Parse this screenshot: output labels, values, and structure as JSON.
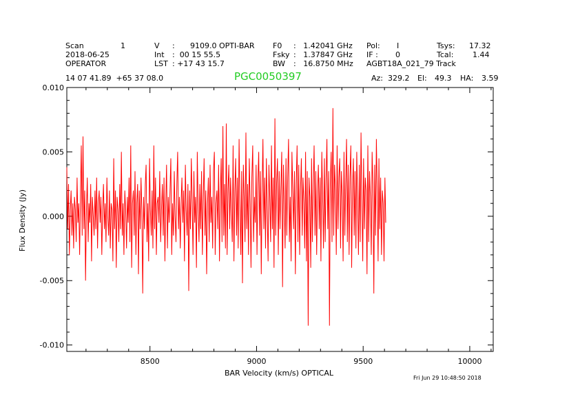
{
  "header": {
    "scan_label": "Scan",
    "scan_value": "1",
    "date": "2018-06-25",
    "observer": "OPERATOR",
    "v_label": "V",
    "v_sep": ":",
    "v_value": "9109.0 OPTI-BAR",
    "int_label": "Int",
    "int_value": ":  00 15 55.5",
    "lst_label": "LST",
    "lst_value": ": +17 43 15.7",
    "f0_label": "F0",
    "f0_value": ":   1.42041 GHz",
    "fsky_label": "Fsky",
    "fsky_value": ":   1.37847 GHz",
    "bw_label": "BW",
    "bw_value": ":   16.8750 MHz",
    "pol_label": "Pol:",
    "pol_value": "I",
    "if_label": "IF :",
    "if_value": "0",
    "project": "AGBT18A_021_79 Track",
    "tsys_label": "Tsys:",
    "tsys_value": "17.32",
    "tcal_label": "Tcal:",
    "tcal_value": "1.44",
    "coords": "14 07 41.89  +65 37 08.0",
    "object_name": "PGC0050397",
    "az_label": "Az:",
    "az_value": "329.2",
    "el_label": "El:",
    "el_value": "49.3",
    "ha_label": "HA:",
    "ha_value": "3.59"
  },
  "timestamp": "Fri Jun 29 10:48:50 2018",
  "colors": {
    "trace": "#ff0000",
    "title": "#22cc22",
    "axes": "#000000"
  },
  "chart_data": {
    "type": "line",
    "title": "PGC0050397",
    "xlabel": "BAR Velocity (km/s) OPTICAL",
    "ylabel": "Flux Density (Jy)",
    "xlim": [
      8110,
      10110
    ],
    "ylim": [
      -0.0105,
      0.01
    ],
    "x_ticks": [
      8500,
      9000,
      9500,
      10000
    ],
    "x_tick_labels": [
      "8500",
      "9000",
      "9500",
      "10000"
    ],
    "y_ticks": [
      -0.01,
      -0.005,
      0.0,
      0.005,
      0.01
    ],
    "y_tick_labels": [
      "-0.010",
      "-0.005",
      "0.000",
      "0.005",
      "0.010"
    ],
    "grid": false,
    "series": [
      {
        "name": "spectrum",
        "x_start": 8110,
        "x_step": 4,
        "values": [
          0.0038,
          -0.001,
          0.0025,
          -0.003,
          0.0005,
          0.002,
          -0.0015,
          0.001,
          -0.0025,
          0.0015,
          0.0005,
          -0.002,
          0.003,
          -0.0005,
          0.001,
          -0.003,
          0.0015,
          0.0055,
          -0.0015,
          0.0062,
          -0.001,
          0.002,
          -0.005,
          0.0005,
          0.003,
          -0.002,
          0.001,
          -0.0005,
          0.0025,
          -0.0035,
          0.0015,
          0.0,
          -0.0015,
          0.002,
          -0.001,
          0.003,
          -0.0025,
          0.001,
          0.002,
          -0.0005,
          0.0015,
          -0.003,
          0.0005,
          0.0025,
          -0.001,
          0.001,
          -0.002,
          0.003,
          0.0,
          -0.0015,
          0.002,
          -0.0025,
          0.001,
          0.0005,
          -0.0035,
          0.0045,
          -0.001,
          0.002,
          -0.004,
          0.0015,
          0.0005,
          -0.002,
          0.0025,
          -0.001,
          0.005,
          -0.0015,
          0.001,
          -0.003,
          0.002,
          0.0005,
          -0.0025,
          0.0015,
          -0.0005,
          0.003,
          -0.002,
          0.0055,
          -0.004,
          0.001,
          0.002,
          -0.0015,
          0.0035,
          -0.003,
          0.001,
          0.0025,
          -0.0045,
          0.002,
          -0.001,
          0.003,
          0.0005,
          -0.006,
          0.0015,
          -0.001,
          0.0025,
          0.004,
          -0.002,
          0.001,
          -0.0035,
          0.0045,
          0.0005,
          -0.0015,
          0.002,
          -0.0025,
          0.0055,
          -0.001,
          0.003,
          -0.003,
          0.001,
          0.0015,
          -0.0005,
          0.0035,
          -0.002,
          0.0005,
          0.0025,
          -0.0015,
          0.003,
          -0.0035,
          0.001,
          0.004,
          -0.0025,
          0.0015,
          -0.0005,
          0.002,
          0.0045,
          -0.003,
          0.001,
          -0.0015,
          0.0035,
          0.0,
          -0.002,
          0.0025,
          0.005,
          -0.001,
          0.0015,
          -0.0025,
          0.001,
          0.003,
          -0.0005,
          0.002,
          -0.0035,
          0.004,
          0.0005,
          -0.0015,
          0.0025,
          -0.0058,
          0.002,
          -0.001,
          0.0045,
          0.001,
          -0.003,
          0.0035,
          -0.0005,
          0.0015,
          -0.004,
          0.005,
          0.0005,
          -0.002,
          0.0025,
          -0.001,
          0.0035,
          -0.003,
          0.0015,
          0.0045,
          -0.0015,
          0.002,
          -0.0045,
          0.001,
          0.003,
          -0.002,
          0.004,
          -0.0005,
          0.0015,
          -0.0025,
          0.0035,
          0.005,
          -0.003,
          0.001,
          0.002,
          -0.001,
          0.004,
          -0.0035,
          0.0015,
          0.0045,
          -0.002,
          0.007,
          -0.0015,
          0.0025,
          -0.0025,
          0.0072,
          -0.003,
          0.002,
          0.004,
          -0.001,
          0.003,
          0.0005,
          -0.002,
          0.0055,
          -0.0035,
          0.002,
          0.0045,
          -0.0015,
          0.003,
          -0.0025,
          0.006,
          0.001,
          -0.003,
          0.0035,
          -0.0052,
          0.004,
          0.0015,
          -0.002,
          0.0065,
          -0.001,
          0.0025,
          -0.003,
          0.0045,
          0.001,
          -0.004,
          0.003,
          0.0055,
          -0.002,
          0.0015,
          -0.0005,
          0.004,
          -0.003,
          0.0025,
          0.005,
          -0.0015,
          0.0035,
          -0.0045,
          0.002,
          0.006,
          -0.001,
          0.003,
          -0.0025,
          0.0045,
          0.0005,
          -0.0035,
          0.004,
          0.0015,
          -0.002,
          0.0055,
          -0.001,
          0.003,
          -0.004,
          0.0076,
          -0.0015,
          0.0025,
          0.0045,
          -0.003,
          0.0035,
          -0.001,
          0.002,
          0.005,
          -0.0055,
          0.004,
          0.001,
          -0.0025,
          0.0045,
          -0.0015,
          0.003,
          0.006,
          -0.002,
          0.0015,
          -0.0035,
          0.005,
          0.002,
          -0.001,
          0.0035,
          -0.0045,
          0.0025,
          0.0055,
          -0.002,
          0.004,
          -0.003,
          0.002,
          0.0045,
          -0.0015,
          0.003,
          0.001,
          -0.0025,
          0.005,
          -0.0035,
          0.0035,
          -0.0085,
          0.003,
          0.0015,
          -0.004,
          0.0045,
          -0.002,
          0.0025,
          0.0055,
          -0.0015,
          0.0035,
          -0.003,
          0.002,
          0.004,
          -0.001,
          0.003,
          -0.0035,
          0.005,
          0.0015,
          -0.0025,
          0.0045,
          -0.002,
          0.003,
          0.006,
          -0.001,
          0.0035,
          -0.0085,
          0.0025,
          0.005,
          -0.002,
          0.0084,
          -0.0015,
          0.004,
          0.002,
          -0.003,
          0.0055,
          -0.001,
          0.003,
          0.0045,
          -0.0025,
          0.0035,
          0.0015,
          -0.0035,
          0.005,
          -0.0015,
          0.0025,
          0.006,
          -0.002,
          0.004,
          -0.003,
          0.003,
          0.0055,
          -0.004,
          0.002,
          0.0045,
          -0.0015,
          0.0035,
          -0.0025,
          0.005,
          0.001,
          -0.003,
          0.004,
          -0.002,
          0.0065,
          0.0015,
          -0.0035,
          0.0045,
          -0.001,
          0.003,
          0.002,
          -0.0045,
          0.0055,
          -0.002,
          0.0035,
          0.0015,
          -0.003,
          0.005,
          0.0025,
          -0.006,
          0.004,
          -0.0015,
          0.006,
          0.002,
          -0.0035,
          0.0045,
          -0.001,
          0.003,
          -0.003,
          0.002,
          0.001,
          -0.0035,
          0.003,
          -0.0005
        ]
      }
    ]
  }
}
